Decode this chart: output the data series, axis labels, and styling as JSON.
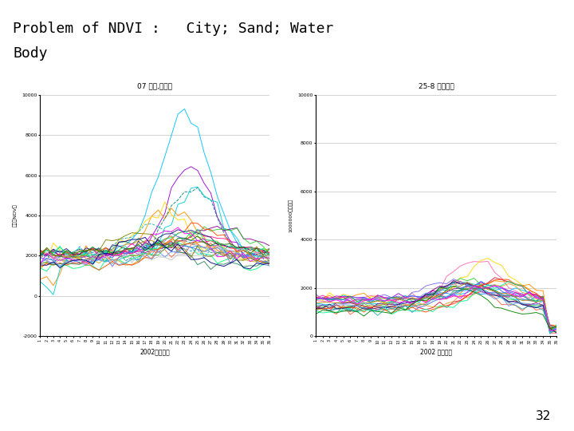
{
  "title_line1": "Problem of NDVI :   City; Sand; Water",
  "title_line2": "Body",
  "title_bg": "#ffffcc",
  "page_bg": "#ffffff",
  "page_number": "32",
  "left_chart": {
    "title": "07 城市,沈阳市",
    "xlabel": "2002年第几天",
    "ylabel": "反射率NDV值",
    "ylim": [
      -2000,
      10000
    ],
    "yticks": [
      -2000,
      0,
      2000,
      4000,
      6000,
      8000,
      10000
    ],
    "n_points": 36,
    "colors": [
      "#00bfff",
      "#9900cc",
      "#ff8c00",
      "#008080",
      "#00ced1",
      "#ffd700",
      "#00ff7f",
      "#dc143c",
      "#1e90ff",
      "#ff6347",
      "#8b008b",
      "#32cd32",
      "#ff1493",
      "#4169e1",
      "#20b2aa",
      "#daa520",
      "#7b68ee",
      "#ff4500",
      "#2e8b57",
      "#191970",
      "#00fa9a",
      "#b8860b",
      "#6495ed",
      "#ff00ff",
      "#008000",
      "#c0c0c0",
      "#808000",
      "#000080"
    ]
  },
  "right_chart": {
    "title": "25-8 京津沙地",
    "xlabel": "2002 年第几天",
    "ylabel": "1000000反射率值",
    "ylim": [
      0,
      10000
    ],
    "yticks": [
      0,
      2000,
      4000,
      6000,
      8000,
      10000
    ],
    "n_points": 36,
    "colors": [
      "#ff69b4",
      "#ffd700",
      "#00bfff",
      "#ff8c00",
      "#32cd32",
      "#9400d3",
      "#00ced1",
      "#dc143c",
      "#1e90ff",
      "#ff6347",
      "#8b008b",
      "#ff1493",
      "#4169e1",
      "#20b2aa",
      "#daa520",
      "#7b68ee",
      "#ff4500",
      "#2e8b57",
      "#191970",
      "#00fa9a",
      "#b8860b",
      "#6495ed",
      "#ff00ff",
      "#008000"
    ]
  }
}
